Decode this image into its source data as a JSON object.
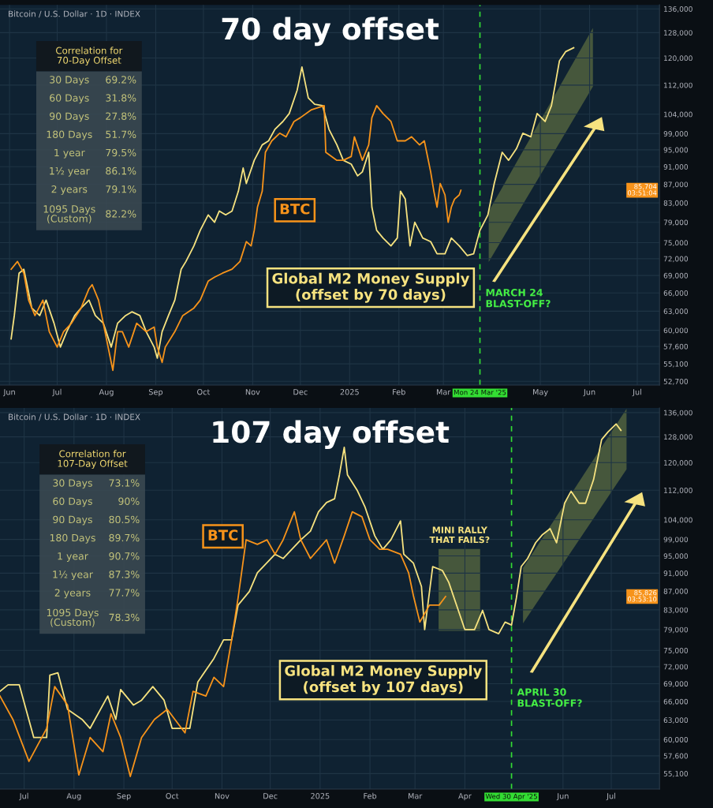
{
  "chart_data": [
    {
      "type": "line",
      "title": "70 day offset",
      "subtitle": "Bitcoin / U.S. Dollar · 1D · INDEX",
      "log": "y",
      "grid": true,
      "legend": false,
      "marker": "none",
      "line_style": "solid",
      "xlim": [
        "2024-05-26",
        "2025-07-15"
      ],
      "ylim": [
        52200,
        137400
      ],
      "xticks": [
        {
          "value": "2024-06-01",
          "label": "Jun"
        },
        {
          "value": "2024-07-01",
          "label": "Jul"
        },
        {
          "value": "2024-08-01",
          "label": "Aug"
        },
        {
          "value": "2024-09-01",
          "label": "Sep"
        },
        {
          "value": "2024-10-01",
          "label": "Oct"
        },
        {
          "value": "2024-11-01",
          "label": "Nov"
        },
        {
          "value": "2024-12-01",
          "label": "Dec"
        },
        {
          "value": "2025-01-01",
          "label": "2025"
        },
        {
          "value": "2025-02-01",
          "label": "Feb"
        },
        {
          "value": "2025-03-01",
          "label": "Mar"
        },
        {
          "value": "2025-05-01",
          "label": "May"
        },
        {
          "value": "2025-06-01",
          "label": "Jun"
        },
        {
          "value": "2025-07-01",
          "label": "Jul"
        }
      ],
      "yticks": [
        {
          "value": 52700,
          "label": "52,700"
        },
        {
          "value": 55100,
          "label": "55,100"
        },
        {
          "value": 57600,
          "label": "57,600"
        },
        {
          "value": 60000,
          "label": "60,000"
        },
        {
          "value": 63000,
          "label": "63,000"
        },
        {
          "value": 66000,
          "label": "66,000"
        },
        {
          "value": 69000,
          "label": "69,000"
        },
        {
          "value": 72000,
          "label": "72,000"
        },
        {
          "value": 75000,
          "label": "75,000"
        },
        {
          "value": 79000,
          "label": "79,000"
        },
        {
          "value": 83000,
          "label": "83,000"
        },
        {
          "value": 87000,
          "label": "87,000"
        },
        {
          "value": 91000,
          "label": "91,000"
        },
        {
          "value": 95000,
          "label": "95,000"
        },
        {
          "value": 99000,
          "label": "99,000"
        },
        {
          "value": 104000,
          "label": "104,000"
        },
        {
          "value": 112000,
          "label": "112,000"
        },
        {
          "value": 120000,
          "label": "120,000"
        },
        {
          "value": 128000,
          "label": "128,000"
        },
        {
          "value": 136000,
          "label": "136,000"
        }
      ],
      "ref_lines": [
        {
          "axis": "x",
          "value": "2025-03-24",
          "label": "Mon 24 Mar '25",
          "color": "#33dd33",
          "line_style": "dashed"
        }
      ],
      "series": [
        {
          "name": "Global M2 Money Supply\n(offset by 70 days)",
          "color": "#f6e27f",
          "x": [
            "2024-06-02",
            "2024-06-04",
            "2024-06-07",
            "2024-06-10",
            "2024-06-15",
            "2024-06-20",
            "2024-06-24",
            "2024-06-29",
            "2024-07-03",
            "2024-07-07",
            "2024-07-12",
            "2024-07-16",
            "2024-07-21",
            "2024-07-25",
            "2024-07-30",
            "2024-08-04",
            "2024-08-08",
            "2024-08-13",
            "2024-08-17",
            "2024-08-22",
            "2024-08-26",
            "2024-08-31",
            "2024-09-02",
            "2024-09-05",
            "2024-09-09",
            "2024-09-13",
            "2024-09-17",
            "2024-09-20",
            "2024-09-25",
            "2024-09-29",
            "2024-10-04",
            "2024-10-08",
            "2024-10-11",
            "2024-10-15",
            "2024-10-19",
            "2024-10-23",
            "2024-10-26",
            "2024-10-28",
            "2024-11-02",
            "2024-11-07",
            "2024-11-11",
            "2024-11-15",
            "2024-11-20",
            "2024-11-24",
            "2024-11-29",
            "2024-12-02",
            "2024-12-06",
            "2024-12-10",
            "2024-12-15",
            "2024-12-19",
            "2024-12-24",
            "2024-12-28",
            "2025-01-02",
            "2025-01-06",
            "2025-01-09",
            "2025-01-13",
            "2025-01-15",
            "2025-01-18",
            "2025-01-22",
            "2025-01-27",
            "2025-01-31",
            "2025-02-02",
            "2025-02-05",
            "2025-02-08",
            "2025-02-11",
            "2025-02-16",
            "2025-02-21",
            "2025-02-25",
            "2025-03-02",
            "2025-03-06",
            "2025-03-11",
            "2025-03-16",
            "2025-03-20",
            "2025-03-24",
            "2025-03-29",
            "2025-04-02",
            "2025-04-07",
            "2025-04-11",
            "2025-04-16",
            "2025-04-20",
            "2025-04-25",
            "2025-04-29",
            "2025-05-04",
            "2025-05-08",
            "2025-05-13",
            "2025-05-17",
            "2025-05-22"
          ],
          "values": [
            58700,
            62300,
            69400,
            70100,
            63500,
            62300,
            64800,
            61100,
            57500,
            59800,
            62300,
            63500,
            64800,
            62300,
            61100,
            57500,
            61100,
            62300,
            62900,
            62300,
            59800,
            57500,
            55900,
            59800,
            62300,
            64800,
            70100,
            71500,
            74400,
            77400,
            80500,
            79000,
            81300,
            80500,
            81300,
            85500,
            90700,
            87200,
            92500,
            96200,
            97200,
            100100,
            102100,
            104200,
            110600,
            117300,
            108400,
            106700,
            106300,
            100100,
            96200,
            92500,
            91600,
            88900,
            89800,
            94400,
            82100,
            77400,
            75900,
            74400,
            75900,
            85500,
            83800,
            74400,
            79000,
            75900,
            75200,
            72900,
            72900,
            75900,
            74400,
            72600,
            72900,
            77400,
            80500,
            87200,
            94400,
            92500,
            95300,
            99100,
            98200,
            104200,
            102100,
            106300,
            119100,
            122000,
            123200
          ]
        },
        {
          "name": "BTC",
          "color": "#f7931a",
          "x": [
            "2024-06-02",
            "2024-06-06",
            "2024-06-10",
            "2024-06-13",
            "2024-06-17",
            "2024-06-22",
            "2024-06-26",
            "2024-07-01",
            "2024-07-05",
            "2024-07-10",
            "2024-07-16",
            "2024-07-21",
            "2024-07-23",
            "2024-07-27",
            "2024-07-30",
            "2024-08-03",
            "2024-08-05",
            "2024-08-08",
            "2024-08-11",
            "2024-08-15",
            "2024-08-20",
            "2024-08-26",
            "2024-08-31",
            "2024-09-02",
            "2024-09-05",
            "2024-09-07",
            "2024-09-13",
            "2024-09-18",
            "2024-09-25",
            "2024-09-29",
            "2024-10-04",
            "2024-10-08",
            "2024-10-13",
            "2024-10-19",
            "2024-10-24",
            "2024-10-28",
            "2024-10-31",
            "2024-11-02",
            "2024-11-04",
            "2024-11-07",
            "2024-11-09",
            "2024-11-13",
            "2024-11-18",
            "2024-11-22",
            "2024-11-27",
            "2024-12-01",
            "2024-12-08",
            "2024-12-16",
            "2024-12-17",
            "2024-12-24",
            "2024-12-28",
            "2025-01-02",
            "2025-01-04",
            "2025-01-09",
            "2025-01-13",
            "2025-01-15",
            "2025-01-18",
            "2025-01-22",
            "2025-01-27",
            "2025-01-31",
            "2025-02-05",
            "2025-02-09",
            "2025-02-14",
            "2025-02-17",
            "2025-02-21",
            "2025-02-23",
            "2025-02-25",
            "2025-02-27",
            "2025-03-02",
            "2025-03-04",
            "2025-03-06",
            "2025-03-08",
            "2025-03-11",
            "2025-03-12"
          ],
          "values": [
            70100,
            71500,
            69400,
            64800,
            62300,
            64800,
            59800,
            57500,
            59800,
            61100,
            63500,
            66700,
            67400,
            64800,
            61100,
            56400,
            54200,
            59800,
            59800,
            57500,
            61100,
            59800,
            60500,
            57500,
            55300,
            57500,
            59800,
            62300,
            63500,
            64800,
            68000,
            68700,
            69400,
            70100,
            71500,
            75200,
            74400,
            77400,
            82100,
            85500,
            94400,
            97200,
            99100,
            98200,
            102100,
            103100,
            105200,
            106300,
            94400,
            92500,
            92500,
            93400,
            98200,
            92500,
            96200,
            103100,
            106300,
            104200,
            102100,
            97200,
            97200,
            98200,
            96200,
            97200,
            89800,
            85500,
            82100,
            87200,
            84700,
            79000,
            82100,
            83800,
            84700,
            85704
          ]
        }
      ],
      "annotations": [
        {
          "text": "MARCH 24\nBLAST-OFF?",
          "x": "2025-03-24",
          "y": 65000
        },
        "85,704\n03:51:04",
        "Correlation for\n70-Day Offset",
        "30 Days",
        "69.2%",
        "60 Days",
        "31.8%",
        "90 Days",
        "27.8%",
        "180 Days",
        "51.7%",
        "1 year",
        "79.5%",
        "1½ year",
        "86.1%",
        "2 years",
        "79.1%",
        "1095 Days\n(Custom)",
        "82.2%"
      ]
    },
    {
      "type": "line",
      "title": "107 day offset",
      "subtitle": "Bitcoin / U.S. Dollar · 1D · INDEX",
      "log": "y",
      "grid": true,
      "legend": false,
      "marker": "none",
      "line_style": "solid",
      "xlim": [
        "2024-06-16",
        "2025-07-31"
      ],
      "ylim": [
        53000,
        137600
      ],
      "xticks": [
        {
          "value": "2024-07-01",
          "label": "Jul"
        },
        {
          "value": "2024-08-01",
          "label": "Aug"
        },
        {
          "value": "2024-09-01",
          "label": "Sep"
        },
        {
          "value": "2024-10-01",
          "label": "Oct"
        },
        {
          "value": "2024-11-01",
          "label": "Nov"
        },
        {
          "value": "2024-12-01",
          "label": "Dec"
        },
        {
          "value": "2025-01-01",
          "label": "2025"
        },
        {
          "value": "2025-02-01",
          "label": "Feb"
        },
        {
          "value": "2025-03-01",
          "label": "Mar"
        },
        {
          "value": "2025-04-01",
          "label": "Apr"
        },
        {
          "value": "2025-06-01",
          "label": "Jun"
        },
        {
          "value": "2025-07-01",
          "label": "Jul"
        }
      ],
      "yticks": [
        {
          "value": 55100,
          "label": "55,100"
        },
        {
          "value": 57600,
          "label": "57,600"
        },
        {
          "value": 60000,
          "label": "60,000"
        },
        {
          "value": 63000,
          "label": "63,000"
        },
        {
          "value": 66000,
          "label": "66,000"
        },
        {
          "value": 69000,
          "label": "69,000"
        },
        {
          "value": 72000,
          "label": "72,000"
        },
        {
          "value": 75000,
          "label": "75,000"
        },
        {
          "value": 79000,
          "label": "79,000"
        },
        {
          "value": 83000,
          "label": "83,000"
        },
        {
          "value": 87000,
          "label": "87,000"
        },
        {
          "value": 91000,
          "label": "91,000"
        },
        {
          "value": 95000,
          "label": "95,000"
        },
        {
          "value": 99000,
          "label": "99,000"
        },
        {
          "value": 104000,
          "label": "104,000"
        },
        {
          "value": 112000,
          "label": "112,000"
        },
        {
          "value": 120000,
          "label": "120,000"
        },
        {
          "value": 128000,
          "label": "128,000"
        },
        {
          "value": 136000,
          "label": "136,000"
        }
      ],
      "ref_lines": [
        {
          "axis": "x",
          "value": "2025-04-30",
          "label": "Wed 30 Apr '25",
          "color": "#33dd33",
          "line_style": "dashed"
        }
      ],
      "series": [
        {
          "name": "Global M2 Money Supply\n(offset by 107 days)",
          "color": "#f6e27f",
          "x": [
            "2024-06-16",
            "2024-06-21",
            "2024-06-28",
            "2024-07-07",
            "2024-07-15",
            "2024-07-17",
            "2024-07-22",
            "2024-07-28",
            "2024-08-06",
            "2024-08-11",
            "2024-08-22",
            "2024-08-27",
            "2024-08-30",
            "2024-09-07",
            "2024-09-12",
            "2024-09-19",
            "2024-09-26",
            "2024-10-01",
            "2024-10-12",
            "2024-10-17",
            "2024-10-27",
            "2024-11-02",
            "2024-11-07",
            "2024-11-11",
            "2024-11-18",
            "2024-11-23",
            "2024-12-04",
            "2024-12-09",
            "2024-12-20",
            "2024-12-26",
            "2024-12-31",
            "2025-01-05",
            "2025-01-10",
            "2025-01-13",
            "2025-01-16",
            "2025-01-18",
            "2025-01-24",
            "2025-01-29",
            "2025-02-04",
            "2025-02-09",
            "2025-02-14",
            "2025-02-20",
            "2025-02-22",
            "2025-02-28",
            "2025-03-05",
            "2025-03-07",
            "2025-03-12",
            "2025-03-18",
            "2025-03-22",
            "2025-03-27",
            "2025-04-01",
            "2025-04-07",
            "2025-04-12",
            "2025-04-16",
            "2025-04-22",
            "2025-04-26",
            "2025-04-30",
            "2025-05-03",
            "2025-05-06",
            "2025-05-10",
            "2025-05-15",
            "2025-05-19",
            "2025-05-24",
            "2025-05-28",
            "2025-06-02",
            "2025-06-06",
            "2025-06-11",
            "2025-06-15",
            "2025-06-20",
            "2025-06-25",
            "2025-06-29",
            "2025-07-04",
            "2025-07-07"
          ],
          "values": [
            67700,
            68800,
            68800,
            60300,
            60300,
            70500,
            70900,
            64700,
            63100,
            61700,
            66900,
            63100,
            68000,
            65400,
            66200,
            68500,
            66200,
            61700,
            61700,
            69300,
            73500,
            77000,
            77000,
            84000,
            86900,
            91100,
            95400,
            94400,
            98900,
            101100,
            106100,
            108600,
            109600,
            116400,
            124700,
            116400,
            112000,
            107300,
            99900,
            96600,
            98900,
            103700,
            95400,
            93300,
            88000,
            79000,
            92500,
            91600,
            88900,
            83800,
            79000,
            79000,
            82900,
            79000,
            78200,
            80500,
            79900,
            85500,
            92500,
            94400,
            98200,
            100100,
            101700,
            98200,
            108400,
            111700,
            108400,
            108400,
            115000,
            127100,
            129600,
            132200,
            130100
          ]
        },
        {
          "name": "BTC",
          "color": "#f7931a",
          "x": [
            "2024-06-16",
            "2024-06-24",
            "2024-07-04",
            "2024-07-15",
            "2024-07-20",
            "2024-07-28",
            "2024-08-04",
            "2024-08-11",
            "2024-08-19",
            "2024-08-24",
            "2024-08-30",
            "2024-09-05",
            "2024-09-12",
            "2024-09-20",
            "2024-09-28",
            "2024-10-09",
            "2024-10-14",
            "2024-10-22",
            "2024-10-27",
            "2024-11-02",
            "2024-11-07",
            "2024-11-11",
            "2024-11-16",
            "2024-11-23",
            "2024-11-29",
            "2024-12-04",
            "2024-12-09",
            "2024-12-16",
            "2024-12-20",
            "2024-12-26",
            "2025-01-05",
            "2025-01-10",
            "2025-01-16",
            "2025-01-21",
            "2025-01-27",
            "2025-02-01",
            "2025-02-07",
            "2025-02-12",
            "2025-02-20",
            "2025-02-25",
            "2025-02-28",
            "2025-03-04",
            "2025-03-10",
            "2025-03-16",
            "2025-03-20"
          ],
          "values": [
            66900,
            63100,
            56800,
            61700,
            68500,
            65400,
            54900,
            60300,
            58200,
            64000,
            60300,
            54700,
            60300,
            63100,
            64700,
            61000,
            67700,
            66900,
            70100,
            68500,
            77000,
            85500,
            98900,
            97800,
            98900,
            95400,
            98900,
            106100,
            98900,
            94400,
            98900,
            93300,
            99900,
            106100,
            104800,
            98900,
            96600,
            96600,
            95400,
            91100,
            86000,
            80500,
            84000,
            84000,
            85826
          ]
        }
      ],
      "annotations": [
        {
          "text": "APRIL 30\nBLAST-OFF?",
          "x": "2025-04-30",
          "y": 66500
        },
        "85,826\n03:53:10",
        "MINI RALLY\nTHAT FAILS?",
        "Correlation for\n107-Day Offset",
        "30 Days",
        "73.1%",
        "60 Days",
        "90%",
        "90 Days",
        "80.5%",
        "180 Days",
        "89.7%",
        "1 year",
        "90.7%",
        "1½ year",
        "87.3%",
        "2 years",
        "77.7%",
        "1095 Days\n(Custom)",
        "78.3%"
      ]
    }
  ]
}
